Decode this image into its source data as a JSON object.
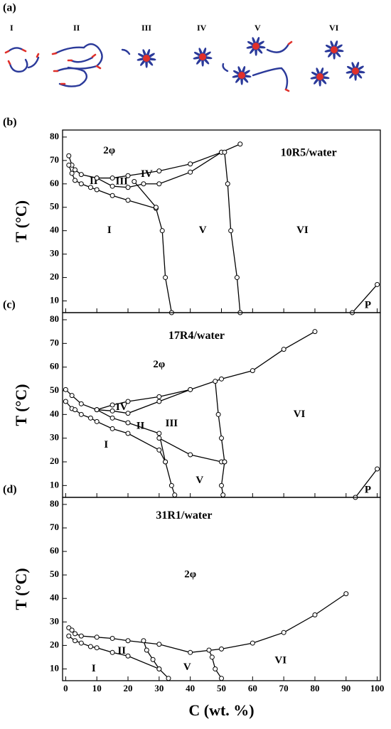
{
  "schematic": {
    "label": "(a)",
    "states": [
      "I",
      "II",
      "III",
      "IV",
      "V",
      "VI"
    ]
  },
  "chart_data": [
    {
      "type": "line",
      "panel": "(b)",
      "title": "10R5/water",
      "ylabel": "T (°C)",
      "xlim": [
        -1,
        101
      ],
      "xticks": [
        0,
        10,
        20,
        30,
        40,
        50,
        60,
        70,
        80,
        90,
        100
      ],
      "ylim": [
        5,
        83
      ],
      "yticks": [
        10,
        20,
        30,
        40,
        50,
        60,
        70,
        80
      ],
      "color": "#000000",
      "regions": [
        "2φ",
        "IV",
        "III",
        "II",
        "I",
        "V",
        "VI",
        "P"
      ],
      "series": [
        {
          "x": [
            1,
            2,
            3,
            5,
            10,
            15,
            20,
            30,
            40,
            50,
            56
          ],
          "y": [
            72,
            68,
            66,
            64,
            62.5,
            62.5,
            63.5,
            65.5,
            68.5,
            73.5,
            77
          ]
        },
        {
          "x": [
            1,
            2,
            3,
            5,
            8,
            10,
            15,
            20,
            29,
            31,
            32,
            34
          ],
          "y": [
            68,
            64.5,
            61.5,
            60,
            58.5,
            57.5,
            55,
            53,
            49.5,
            40,
            20,
            5
          ]
        },
        {
          "x": [
            10,
            15,
            20,
            25,
            30,
            40,
            50
          ],
          "y": [
            62.5,
            59,
            58.5,
            60,
            60,
            65,
            73.5
          ]
        },
        {
          "x": [
            22,
            29
          ],
          "y": [
            61,
            50
          ]
        },
        {
          "x": [
            51,
            52,
            53,
            55,
            56
          ],
          "y": [
            73.5,
            60,
            40,
            20,
            5
          ]
        },
        {
          "x": [
            92,
            100
          ],
          "y": [
            5,
            17
          ]
        }
      ]
    },
    {
      "type": "line",
      "panel": "(c)",
      "title": "17R4/water",
      "ylabel": "T (°C)",
      "xlim": [
        -1,
        101
      ],
      "xticks": [
        0,
        10,
        20,
        30,
        40,
        50,
        60,
        70,
        80,
        90,
        100
      ],
      "ylim": [
        5,
        83
      ],
      "yticks": [
        10,
        20,
        30,
        40,
        50,
        60,
        70,
        80
      ],
      "color": "#000000",
      "regions": [
        "2φ",
        "IV",
        "III",
        "II",
        "I",
        "V",
        "VI",
        "P"
      ],
      "series": [
        {
          "x": [
            0,
            2,
            5,
            10,
            15,
            20,
            30,
            40,
            50,
            60,
            70,
            80
          ],
          "y": [
            50.5,
            48,
            44.5,
            42,
            44,
            45.5,
            47.5,
            50.5,
            55,
            58.5,
            67.5,
            75
          ]
        },
        {
          "x": [
            10,
            15,
            20,
            30,
            40
          ],
          "y": [
            42,
            41.5,
            40.5,
            45.5,
            50.5
          ]
        },
        {
          "x": [
            0,
            2,
            3,
            5,
            8,
            10,
            15,
            20,
            30,
            32,
            34,
            35
          ],
          "y": [
            45.5,
            42.5,
            42,
            40,
            38.5,
            37,
            34,
            32,
            25,
            20,
            10,
            6
          ]
        },
        {
          "x": [
            10,
            15,
            20,
            30,
            32
          ],
          "y": [
            42,
            38.5,
            36.5,
            32,
            20
          ]
        },
        {
          "x": [
            30,
            40,
            50,
            51
          ],
          "y": [
            30,
            23,
            20,
            20
          ]
        },
        {
          "x": [
            48,
            49,
            50,
            51,
            50,
            50.5
          ],
          "y": [
            54,
            40,
            30,
            20,
            10,
            6
          ]
        },
        {
          "x": [
            93,
            100
          ],
          "y": [
            5,
            17
          ]
        }
      ]
    },
    {
      "type": "line",
      "panel": "(d)",
      "title": "31R1/water",
      "ylabel": "T (°C)",
      "xlabel": "C (wt. %)",
      "xlim": [
        -1,
        101
      ],
      "xticks": [
        0,
        10,
        20,
        30,
        40,
        50,
        60,
        70,
        80,
        90,
        100
      ],
      "ylim": [
        5,
        83
      ],
      "yticks": [
        10,
        20,
        30,
        40,
        50,
        60,
        70,
        80
      ],
      "color": "#000000",
      "regions": [
        "2φ",
        "II",
        "I",
        "V",
        "VI"
      ],
      "series": [
        {
          "x": [
            1,
            2,
            3,
            5,
            10,
            15,
            20,
            30,
            40,
            50,
            60,
            70,
            80,
            90
          ],
          "y": [
            27.5,
            26.5,
            25,
            24,
            23.5,
            23,
            22,
            20.5,
            17,
            18.5,
            21,
            25.5,
            33,
            42
          ]
        },
        {
          "x": [
            1,
            3,
            5,
            8,
            10,
            15,
            20,
            30,
            33
          ],
          "y": [
            24,
            22,
            21,
            19.5,
            19,
            17,
            15.5,
            10,
            6
          ]
        },
        {
          "x": [
            25,
            26,
            28,
            30
          ],
          "y": [
            22,
            18,
            14,
            10
          ]
        },
        {
          "x": [
            46,
            47,
            48,
            50
          ],
          "y": [
            18,
            15,
            10,
            6
          ]
        }
      ]
    }
  ]
}
